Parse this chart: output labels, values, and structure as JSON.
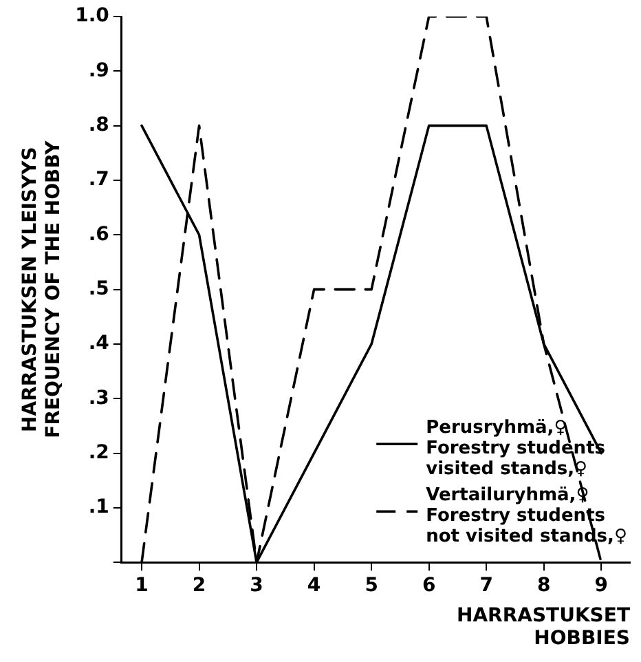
{
  "chart_data": {
    "type": "line",
    "xlabel": "HARRASTUKSET\nHOBBIES",
    "ylabel": "HARRASTUKSEN YLEISYYS\nFREQUENCY OF THE HOBBY",
    "x": [
      1,
      2,
      3,
      4,
      5,
      6,
      7,
      8,
      9
    ],
    "series": [
      {
        "name": "Perusryhmä,♀\nForestry students\nvisited stands,♀",
        "color": "#000000",
        "line_style": "solid",
        "values": [
          0.8,
          0.6,
          0,
          0.2,
          0.4,
          0.8,
          0.8,
          0.4,
          0.2
        ]
      },
      {
        "name": "Vertailuryhmä,♀\nForestry students\nnot visited stands,♀",
        "color": "#000000",
        "line_style": "dashed",
        "values": [
          0,
          0.8,
          0,
          0.5,
          0.5,
          1.0,
          1.0,
          0.4,
          0
        ]
      }
    ],
    "xlim": [
      0.65,
      9.5
    ],
    "xticks": [
      1,
      2,
      3,
      4,
      5,
      6,
      7,
      8,
      9
    ],
    "ylim": [
      0,
      1.0
    ],
    "yticks": [
      {
        "value": 0,
        "label": null
      },
      {
        "value": 0.1,
        "label": ".1"
      },
      {
        "value": 0.2,
        "label": ".2"
      },
      {
        "value": 0.3,
        "label": ".3"
      },
      {
        "value": 0.4,
        "label": ".4"
      },
      {
        "value": 0.5,
        "label": ".5"
      },
      {
        "value": 0.6,
        "label": ".6"
      },
      {
        "value": 0.7,
        "label": ".7"
      },
      {
        "value": 0.8,
        "label": ".8"
      },
      {
        "value": 0.9,
        "label": ".9"
      },
      {
        "value": 1.0,
        "label": "1.0"
      }
    ],
    "grid": false,
    "legend": "bottom right",
    "marker": "none"
  }
}
